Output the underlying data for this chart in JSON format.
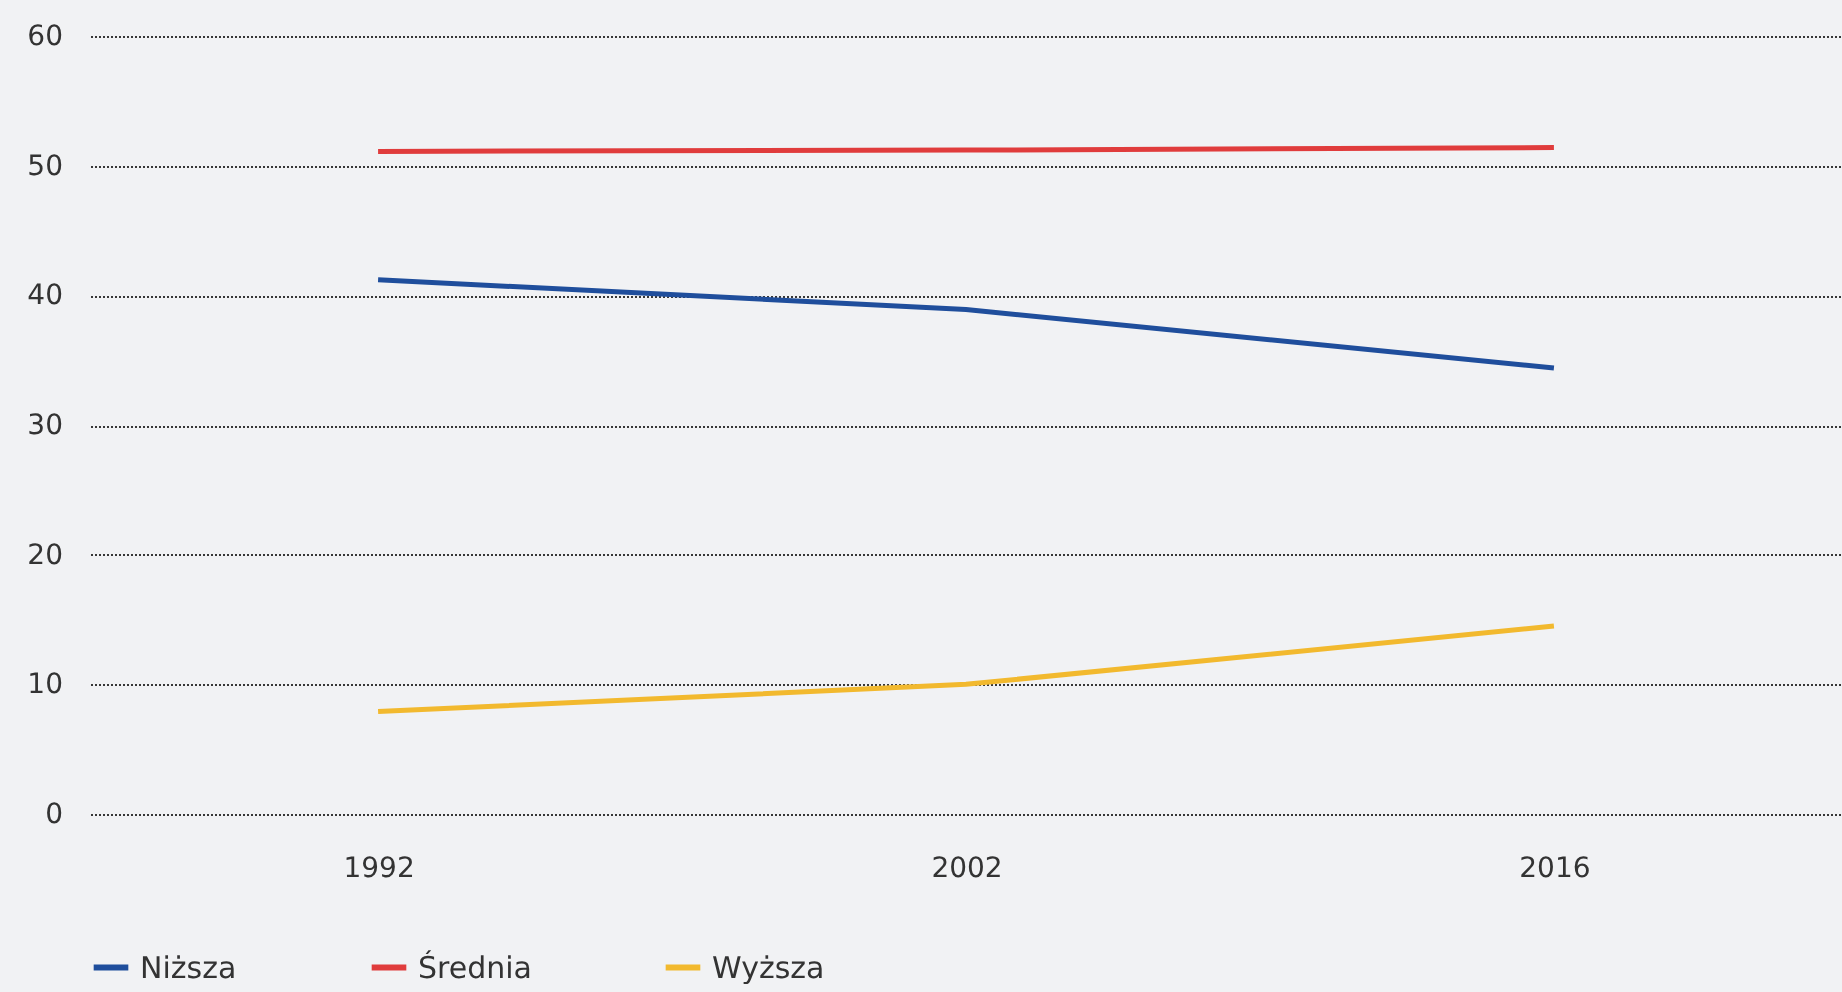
{
  "chart_data": {
    "type": "line",
    "categories": [
      "1992",
      "2002",
      "2016"
    ],
    "series": [
      {
        "name": "Niższa",
        "color": "#1f4e9c",
        "values": [
          41.2,
          38.9,
          34.4
        ]
      },
      {
        "name": "Średnia",
        "color": "#e03c3c",
        "values": [
          51.1,
          51.2,
          51.4
        ]
      },
      {
        "name": "Wyższa",
        "color": "#f2b92e",
        "values": [
          7.9,
          10.0,
          14.5
        ]
      }
    ],
    "ylim": [
      0,
      60
    ],
    "yticks": [
      0,
      10,
      20,
      30,
      40,
      50,
      60
    ],
    "grid": "y",
    "legend": "bottom left",
    "marker": "none",
    "line_style": "solid"
  }
}
